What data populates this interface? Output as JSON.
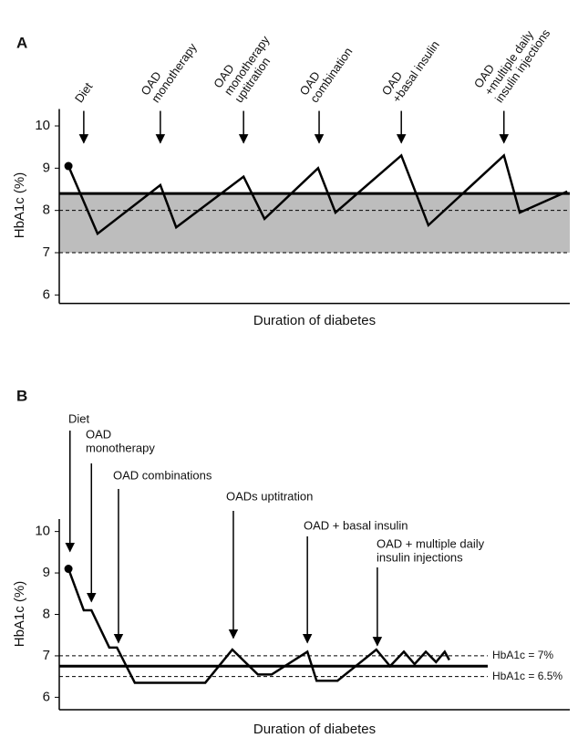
{
  "chart_data": [
    {
      "type": "line",
      "panel": "A",
      "y_label": "HbA1c (%)",
      "x_label": "Duration of diabetes",
      "xlim": [
        0,
        100
      ],
      "ylim": [
        5.8,
        10.4
      ],
      "yticks": [
        6,
        7,
        8,
        9,
        10
      ],
      "color": "#000000",
      "band_color": "#bdbdbd",
      "x": [
        1.8,
        7.5,
        19.8,
        22.9,
        36.1,
        40.2,
        50.7,
        54.1,
        67,
        72.3,
        87.1,
        90.2,
        99.5
      ],
      "values": [
        9.05,
        7.45,
        8.6,
        7.6,
        8.8,
        7.8,
        9.0,
        7.95,
        9.3,
        7.65,
        9.3,
        7.95,
        8.45
      ],
      "band": [
        7,
        8.4
      ],
      "hlines": [
        {
          "value": 8.4,
          "style": "solid"
        },
        {
          "value": 8,
          "style": "dashed"
        },
        {
          "value": 7,
          "style": "dashed"
        }
      ],
      "annotations": [
        {
          "lines": [
            "Diet"
          ],
          "x": 4.8,
          "y": 9.6
        },
        {
          "lines": [
            "OAD",
            "monotherapy"
          ],
          "x": 19.8,
          "y": 9.6
        },
        {
          "lines": [
            "OAD",
            "monotherapy",
            "uptitration"
          ],
          "x": 36.1,
          "y": 9.6
        },
        {
          "lines": [
            "OAD",
            "combination"
          ],
          "x": 50.9,
          "y": 9.6
        },
        {
          "lines": [
            "OAD",
            "+basal insulin"
          ],
          "x": 67,
          "y": 9.6
        },
        {
          "lines": [
            "OAD",
            "+multiple daily",
            "insulin injections"
          ],
          "x": 87.1,
          "y": 9.6
        }
      ]
    },
    {
      "type": "line",
      "panel": "B",
      "y_label": "HbA1c (%)",
      "x_label": "Duration of diabetes",
      "xlim": [
        0,
        100
      ],
      "ylim": [
        5.7,
        10.3
      ],
      "yticks": [
        6,
        7,
        8,
        9,
        10
      ],
      "color": "#000000",
      "x": [
        1.8,
        4.8,
        6.3,
        9.8,
        11.3,
        14.8,
        28.6,
        33.9,
        38.9,
        41.6,
        48.6,
        50.4,
        54.5,
        62.1,
        64.8,
        67.5,
        69.6,
        71.8,
        73.8,
        75.5,
        76.4
      ],
      "values": [
        9.1,
        8.1,
        8.1,
        7.2,
        7.2,
        6.35,
        6.35,
        7.15,
        6.55,
        6.55,
        7.1,
        6.4,
        6.4,
        7.15,
        6.75,
        7.1,
        6.8,
        7.1,
        6.85,
        7.1,
        6.9
      ],
      "hlines": [
        {
          "value": 7,
          "style": "dashed",
          "label": "HbA1c = 7%"
        },
        {
          "value": 6.75,
          "style": "solid"
        },
        {
          "value": 6.5,
          "style": "dashed",
          "label": "HbA1c = 6.5%"
        }
      ],
      "annotations": [
        {
          "lines": [
            "Diet"
          ],
          "x": 2.1,
          "y": 9.52
        },
        {
          "lines": [
            "OAD",
            "monotherapy"
          ],
          "x": 6.3,
          "y": 8.31
        },
        {
          "lines": [
            "OAD combinations"
          ],
          "x": 11.6,
          "y": 7.32
        },
        {
          "lines": [
            "OADs uptitration"
          ],
          "x": 34.1,
          "y": 7.43
        },
        {
          "lines": [
            "OAD + basal insulin"
          ],
          "x": 48.6,
          "y": 7.32
        },
        {
          "lines": [
            "OAD + multiple daily",
            "insulin injections"
          ],
          "x": 62.3,
          "y": 7.25
        }
      ]
    }
  ]
}
